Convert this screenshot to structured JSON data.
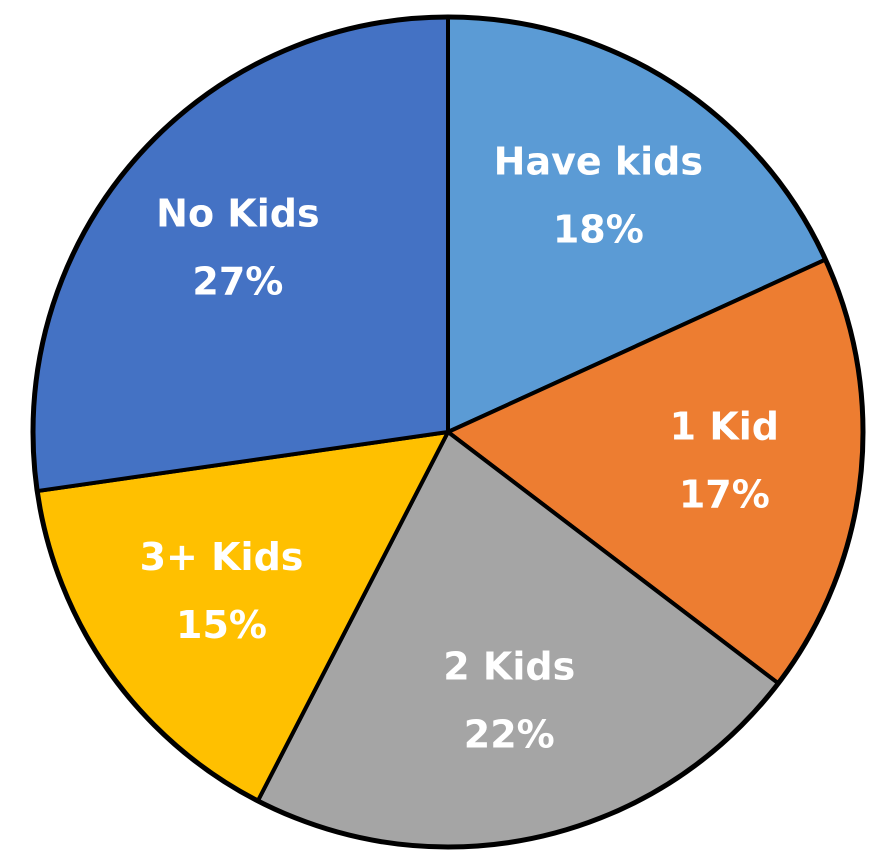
{
  "chart_data": {
    "type": "pie",
    "title": "",
    "legend": "none",
    "start_angle_deg": 0,
    "direction": "clockwise",
    "slices": [
      {
        "label": "Have kids",
        "value": 18,
        "value_label": "18%",
        "color": "#5B9BD5"
      },
      {
        "label": "1 Kid",
        "value": 17,
        "value_label": "17%",
        "color": "#ED7D31"
      },
      {
        "label": "2 Kids",
        "value": 22,
        "value_label": "22%",
        "color": "#A5A5A5"
      },
      {
        "label": "3+ Kids",
        "value": 15,
        "value_label": "15%",
        "color": "#FFC000"
      },
      {
        "label": "No Kids",
        "value": 27,
        "value_label": "27%",
        "color": "#4472C4"
      }
    ]
  }
}
